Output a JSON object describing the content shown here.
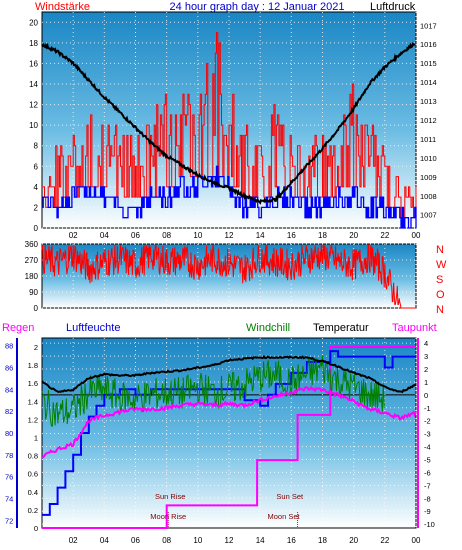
{
  "header": {
    "left_label": "Windstärke",
    "title": "24 hour graph day : 12 Januar 2021",
    "right_label": "Luftdruck"
  },
  "legend_row": {
    "regen": "Regen",
    "luftfeuchte": "Luftfeuchte",
    "windchill": "Windchill",
    "temperatur": "Temperatur",
    "taupunkt": "Taupunkt"
  },
  "direction_labels": [
    "N",
    "W",
    "S",
    "O",
    "N"
  ],
  "celestial_labels": {
    "sun_rise": "Sun Rise",
    "moon_rise": "Moon Rise",
    "sun_set": "Sun Set",
    "moon_set": "Moon Set"
  },
  "colors": {
    "wind_speed": "#ff0000",
    "wind_gust_low": "#0000ff",
    "pressure": "#000000",
    "direction": "#ff0000",
    "humidity": "#0000ff",
    "windchill": "#008000",
    "temperature": "#000000",
    "dewpoint": "#ff00ff",
    "rain": "#ff00ff",
    "sun_marker": "#cc0066",
    "moon_marker": "#cc0066"
  },
  "chart_data": [
    {
      "type": "line",
      "panel": "wind-pressure",
      "x_ticks": [
        "02",
        "04",
        "06",
        "08",
        "10",
        "12",
        "14",
        "16",
        "18",
        "20",
        "22",
        "00"
      ],
      "y_left_ticks": [
        "0",
        "2",
        "4",
        "6",
        "8",
        "10",
        "12",
        "14",
        "16",
        "18",
        "20"
      ],
      "y_left_range": [
        0,
        21
      ],
      "y_right_ticks": [
        "1007",
        "1008",
        "1009",
        "1010",
        "1011",
        "1012",
        "1013",
        "1014",
        "1015",
        "1016",
        "1017"
      ],
      "y_right_range": [
        1006.3,
        1017.7
      ],
      "x_range": [
        0,
        24
      ],
      "series": [
        {
          "name": "Luftdruck",
          "axis": "right",
          "x": [
            0,
            1,
            2,
            3,
            4,
            5,
            6,
            7,
            8,
            9,
            10,
            11,
            12,
            13,
            14,
            15,
            16,
            17,
            18,
            19,
            20,
            21,
            22,
            23,
            24
          ],
          "values": [
            1016.0,
            1015.6,
            1015.0,
            1014.1,
            1013.2,
            1012.4,
            1011.6,
            1010.8,
            1010.1,
            1009.6,
            1009.1,
            1008.7,
            1008.4,
            1008.0,
            1007.7,
            1007.8,
            1008.7,
            1009.6,
            1010.5,
            1011.5,
            1012.6,
            1013.9,
            1014.8,
            1015.5,
            1016.1
          ]
        },
        {
          "name": "Windstärke",
          "axis": "left",
          "x": [
            0,
            1,
            2,
            3,
            4,
            5,
            6,
            7,
            8,
            9,
            10,
            11,
            12,
            13,
            14,
            15,
            16,
            17,
            18,
            19,
            20,
            21,
            22,
            23,
            24
          ],
          "values": [
            3,
            4,
            5,
            7,
            6,
            4,
            5,
            5,
            7,
            8,
            8,
            9,
            8,
            5,
            4,
            6,
            6,
            4,
            5,
            6,
            7,
            6,
            4,
            2,
            2
          ]
        },
        {
          "name": "Windstärke min",
          "axis": "left",
          "x": [
            0,
            1,
            2,
            3,
            4,
            5,
            6,
            7,
            8,
            9,
            10,
            11,
            12,
            13,
            14,
            15,
            16,
            17,
            18,
            19,
            20,
            21,
            22,
            23,
            24
          ],
          "values": [
            2,
            1,
            2,
            3,
            2,
            1,
            1,
            2,
            2,
            3,
            3,
            4,
            3,
            1,
            1,
            2,
            2,
            1,
            1,
            2,
            2,
            1,
            1,
            0,
            0
          ]
        },
        {
          "name": "Windböen",
          "axis": "left",
          "x": [
            0,
            1,
            2,
            3,
            4,
            5,
            6,
            7,
            8,
            9,
            10,
            11,
            12,
            13,
            14,
            15,
            16,
            17,
            18,
            19,
            20,
            21,
            22,
            23,
            24
          ],
          "values": [
            6,
            8,
            9,
            12,
            11,
            9,
            10,
            11,
            14,
            13,
            14,
            21,
            15,
            10,
            9,
            13,
            9,
            8,
            10,
            12,
            14,
            11,
            8,
            4,
            4
          ]
        }
      ]
    },
    {
      "type": "line",
      "panel": "wind-direction",
      "x_ticks": [
        "02",
        "04",
        "06",
        "08",
        "10",
        "12",
        "14",
        "16",
        "18",
        "20",
        "22",
        "00"
      ],
      "y_ticks": [
        "0",
        "90",
        "180",
        "270",
        "360"
      ],
      "y_range": [
        0,
        360
      ],
      "x_range": [
        0,
        24
      ],
      "series": [
        {
          "name": "Windrichtung",
          "x": [
            0,
            1,
            2,
            3,
            4,
            5,
            6,
            7,
            8,
            9,
            10,
            11,
            12,
            13,
            14,
            15,
            16,
            17,
            18,
            19,
            20,
            21,
            22,
            23,
            24
          ],
          "values": [
            280,
            250,
            300,
            220,
            260,
            280,
            240,
            300,
            260,
            270,
            240,
            280,
            250,
            220,
            290,
            260,
            240,
            280,
            300,
            260,
            240,
            290,
            200,
            0,
            0
          ]
        }
      ]
    },
    {
      "type": "line",
      "panel": "temperature-humidity-rain",
      "x_ticks": [
        "02",
        "04",
        "06",
        "08",
        "10",
        "12",
        "14",
        "16",
        "18",
        "20",
        "22",
        "00"
      ],
      "y_humidity_ticks": [
        "72",
        "74",
        "76",
        "78",
        "80",
        "82",
        "84",
        "86",
        "88"
      ],
      "y_humidity_range": [
        71.3,
        88.7
      ],
      "y_rain_ticks": [
        "0",
        "0.2",
        "0.4",
        "0.6",
        "0.8",
        "1",
        "1.2",
        "1.4",
        "1.6",
        "1.8",
        "2"
      ],
      "y_rain_range": [
        0,
        2.1
      ],
      "y_temp_ticks": [
        "4",
        "3",
        "2",
        "1",
        "0",
        "-1",
        "-2",
        "-3",
        "-4",
        "-5",
        "-6",
        "-7",
        "-8",
        "-9",
        "-10"
      ],
      "y_temp_range": [
        -10.3,
        4.4
      ],
      "x_range": [
        0,
        24
      ],
      "series": [
        {
          "name": "Temperatur",
          "axis": "temp",
          "x": [
            0,
            1,
            2,
            3,
            4,
            5,
            6,
            7,
            8,
            9,
            10,
            11,
            12,
            13,
            14,
            15,
            16,
            17,
            18,
            19,
            20,
            21,
            22,
            23,
            24
          ],
          "values": [
            1.0,
            0.2,
            0.4,
            1.3,
            1.6,
            1.5,
            1.5,
            1.7,
            1.8,
            1.9,
            2.1,
            2.3,
            2.7,
            2.8,
            2.9,
            2.9,
            2.9,
            2.9,
            2.6,
            2.2,
            1.7,
            1.3,
            0.6,
            0.2,
            0.8
          ]
        },
        {
          "name": "Windchill",
          "axis": "temp",
          "x": [
            0,
            1,
            2,
            3,
            4,
            5,
            6,
            7,
            8,
            9,
            10,
            11,
            12,
            13,
            14,
            15,
            16,
            17,
            18,
            19,
            20,
            21,
            22,
            23,
            24
          ],
          "values": [
            -0.5,
            -1.5,
            -1.2,
            0.2,
            0.4,
            -0.2,
            -0.3,
            0.0,
            0.2,
            0.1,
            0.6,
            0.2,
            0.4,
            0.8,
            1.4,
            1.5,
            0.9,
            1.6,
            2.1,
            1.1,
            0.6,
            0.0,
            -0.3,
            null,
            null
          ]
        },
        {
          "name": "Taupunkt",
          "axis": "temp",
          "x": [
            0,
            1,
            2,
            3,
            4,
            5,
            6,
            7,
            8,
            9,
            10,
            11,
            12,
            13,
            14,
            15,
            16,
            17,
            18,
            19,
            20,
            21,
            22,
            23,
            24
          ],
          "values": [
            -4.8,
            -4.2,
            -3.8,
            -2.0,
            -1.6,
            -1.3,
            -1.1,
            -1.1,
            -1.0,
            -0.8,
            -0.7,
            -0.8,
            -0.7,
            -0.8,
            -0.4,
            -0.1,
            0.2,
            0.5,
            0.4,
            0.0,
            -0.5,
            -1.1,
            -1.4,
            -1.8,
            -1.4
          ]
        },
        {
          "name": "Luftfeuchte",
          "axis": "humidity",
          "x": [
            0,
            0.5,
            1,
            1.5,
            2,
            2.5,
            3,
            3.5,
            4,
            5,
            6,
            7,
            8,
            9,
            10,
            11,
            12,
            13,
            14,
            14.5,
            15,
            16,
            17,
            18,
            18.5,
            19,
            20,
            21,
            22,
            22.5,
            23,
            24
          ],
          "values": [
            72.5,
            73.5,
            75,
            76.5,
            78,
            80,
            81.5,
            82.5,
            83.5,
            84,
            83.5,
            84,
            84,
            84,
            84,
            84,
            84,
            83,
            82.5,
            83.5,
            84.5,
            85.5,
            86.5,
            86.5,
            87.5,
            87,
            87,
            87,
            86,
            87,
            87,
            87
          ]
        },
        {
          "name": "Regen",
          "axis": "rain",
          "x": [
            0,
            8.0,
            8.0,
            13.8,
            13.8,
            16.4,
            16.4,
            18.5,
            18.5,
            24
          ],
          "values": [
            0,
            0,
            0.25,
            0.25,
            0.75,
            0.75,
            1.25,
            1.25,
            2.0,
            2.0
          ]
        }
      ]
    }
  ]
}
